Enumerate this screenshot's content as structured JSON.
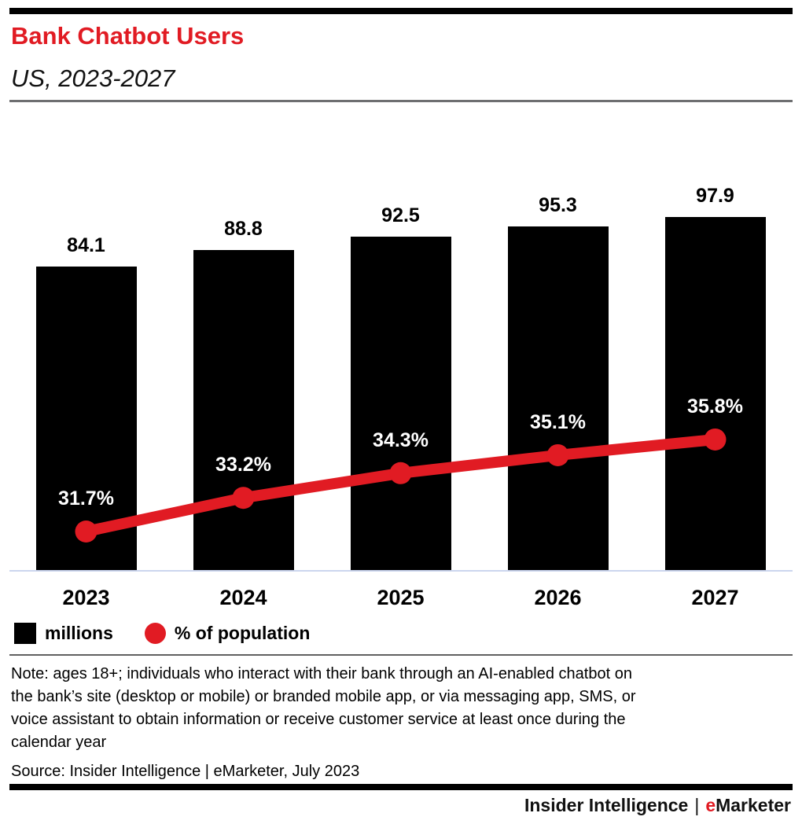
{
  "header": {
    "title": "Bank Chatbot Users",
    "subtitle": "US, 2023-2027"
  },
  "chart_data": {
    "type": "bar",
    "title": "Bank Chatbot Users",
    "subtitle": "US, 2023-2027",
    "categories": [
      "2023",
      "2024",
      "2025",
      "2026",
      "2027"
    ],
    "series": [
      {
        "name": "millions",
        "type": "bar",
        "values": [
          84.1,
          88.8,
          92.5,
          95.3,
          97.9
        ],
        "color": "#000000",
        "label_suffix": ""
      },
      {
        "name": "% of population",
        "type": "line",
        "values": [
          31.7,
          33.2,
          34.3,
          35.1,
          35.8
        ],
        "color": "#e11b23",
        "label_suffix": "%"
      }
    ],
    "grid": false,
    "legend_position": "bottom-left",
    "value_labels": "shown"
  },
  "legend": {
    "items": [
      {
        "label": "millions",
        "swatch": "square",
        "color": "#000000"
      },
      {
        "label": "% of population",
        "swatch": "circle",
        "color": "#e11b23"
      }
    ]
  },
  "note": {
    "lines": [
      "Note: ages 18+; individuals who interact with their bank through an AI-enabled chatbot on",
      "the bank’s site (desktop or mobile) or branded mobile app, or via messaging app, SMS, or",
      "voice assistant to obtain information or receive customer service at least once during the",
      "calendar year"
    ]
  },
  "source": "Source: Insider Intelligence | eMarketer, July 2023",
  "footer": {
    "brand_left": "Insider Intelligence",
    "separator": "|",
    "brand_e": "e",
    "brand_rest": "Marketer"
  },
  "colors": {
    "accent_red": "#e11b23",
    "bar_black": "#000000",
    "axis_line": "#ccd6ee"
  }
}
